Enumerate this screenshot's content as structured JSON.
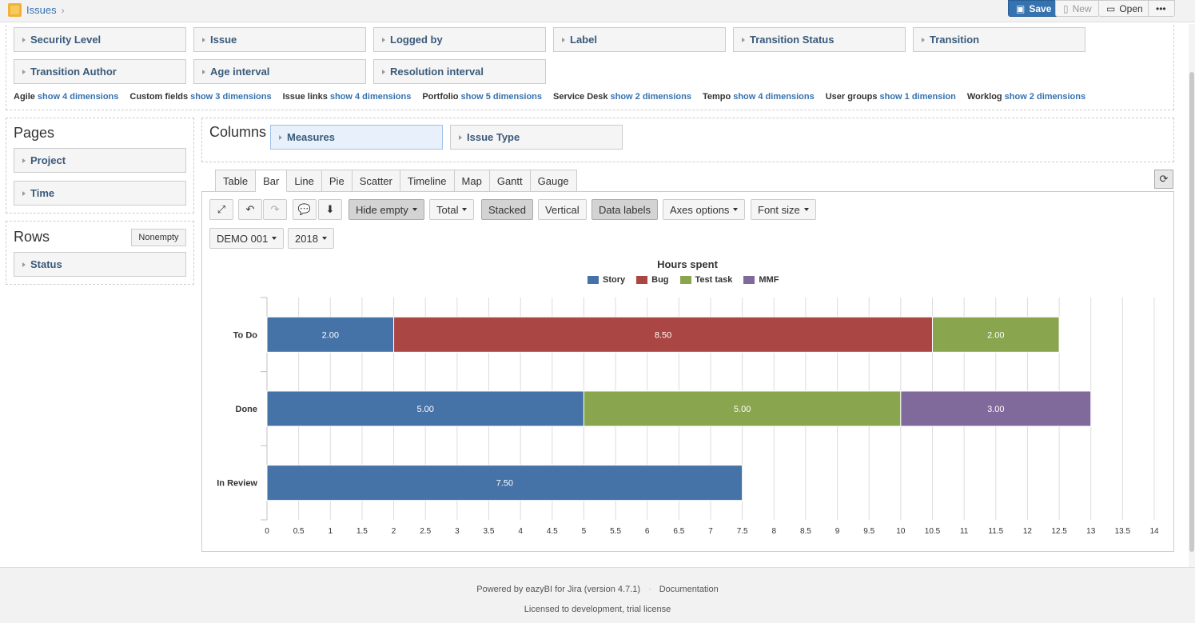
{
  "breadcrumb": {
    "app": "Issues"
  },
  "toolbar": {
    "save": "Save",
    "new": "New",
    "open": "Open",
    "more": "•••"
  },
  "dimensions": {
    "row1": [
      "Security Level",
      "Issue",
      "Logged by",
      "Label",
      "Transition Status",
      "Transition"
    ],
    "row2": [
      "Transition Author",
      "Age interval",
      "Resolution interval"
    ]
  },
  "dimension_links": [
    {
      "group": "Agile",
      "link": "show 4 dimensions"
    },
    {
      "group": "Custom fields",
      "link": "show 3 dimensions"
    },
    {
      "group": "Issue links",
      "link": "show 4 dimensions"
    },
    {
      "group": "Portfolio",
      "link": "show 5 dimensions"
    },
    {
      "group": "Service Desk",
      "link": "show 2 dimensions"
    },
    {
      "group": "Tempo",
      "link": "show 4 dimensions"
    },
    {
      "group": "User groups",
      "link": "show 1 dimension"
    },
    {
      "group": "Worklog",
      "link": "show 2 dimensions"
    }
  ],
  "pages": {
    "title": "Pages",
    "items": [
      "Project",
      "Time"
    ]
  },
  "rows": {
    "title": "Rows",
    "nonempty": "Nonempty",
    "items": [
      "Status"
    ]
  },
  "columns": {
    "title": "Columns",
    "items": [
      "Measures",
      "Issue Type"
    ]
  },
  "chart_tabs": [
    "Table",
    "Bar",
    "Line",
    "Pie",
    "Scatter",
    "Timeline",
    "Map",
    "Gantt",
    "Gauge"
  ],
  "active_tab": "Bar",
  "chart_toolbar": {
    "hide_empty": "Hide empty",
    "total": "Total",
    "stacked": "Stacked",
    "vertical": "Vertical",
    "data_labels": "Data labels",
    "axes_options": "Axes options",
    "font_size": "Font size"
  },
  "page_filters": {
    "project": "DEMO 001",
    "time": "2018"
  },
  "colors": {
    "Story": "#4572a7",
    "Bug": "#aa4643",
    "Test task": "#89a54e",
    "MMF": "#80699b"
  },
  "chart_data": {
    "type": "bar",
    "orientation": "horizontal",
    "stacked": true,
    "title": "Hours spent",
    "categories": [
      "To Do",
      "Done",
      "In Review"
    ],
    "series": [
      {
        "name": "Story",
        "values": [
          2.0,
          5.0,
          7.5
        ]
      },
      {
        "name": "Bug",
        "values": [
          8.5,
          0,
          0
        ]
      },
      {
        "name": "Test task",
        "values": [
          2.0,
          5.0,
          0
        ]
      },
      {
        "name": "MMF",
        "values": [
          0,
          3.0,
          0
        ]
      }
    ],
    "data_labels": true,
    "legend": "top",
    "xlim": [
      0,
      14
    ],
    "xticks": [
      "0",
      "0.5",
      "1",
      "1.5",
      "2",
      "2.5",
      "3",
      "3.5",
      "4",
      "4.5",
      "5",
      "5.5",
      "6",
      "6.5",
      "7",
      "7.5",
      "8",
      "8.5",
      "9",
      "9.5",
      "10",
      "10.5",
      "11",
      "11.5",
      "12",
      "12.5",
      "13",
      "13.5",
      "14"
    ],
    "grid": true
  },
  "footer": {
    "powered": "Powered by eazyBI for Jira (version 4.7.1)",
    "documentation": "Documentation",
    "license": "Licensed to development, trial license"
  }
}
